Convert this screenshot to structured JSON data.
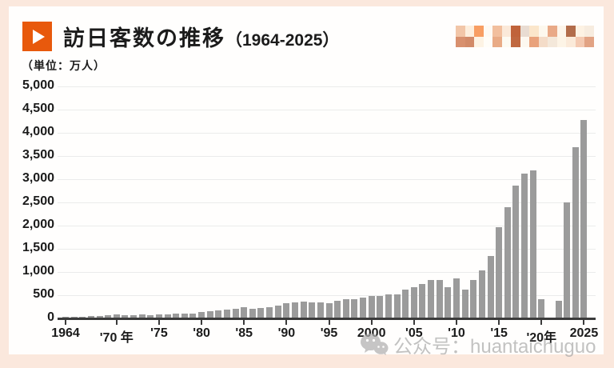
{
  "page": {
    "outer_bg": "#fbe8dd",
    "card_bg": "#fffefd"
  },
  "header": {
    "icon_color": "#e8590c",
    "title": "訪日客数の推移",
    "title_suffix": "（1964-2025）"
  },
  "unit_label": "（単位：万人）",
  "mosaic_watermark": {
    "rows": [
      [
        "#f2c6a8",
        "#fdeedd",
        "#f89e63",
        "#fefaf4",
        "#f2bf9e",
        "#fbe9d9",
        "#c0633a",
        "#e9dcd2",
        "#fbe6cb",
        "#fdf8ee",
        "#e9a987",
        "#fdf5ea",
        "#b26c4a",
        "#fdf2e3",
        "#f7ecdf"
      ],
      [
        "#d8906e",
        "#d28a68",
        "#fdf3e4",
        "#fffdf8",
        "#e9ab86",
        "#fdfaf2",
        "#c06840",
        "#fdf8f0",
        "#e9a27c",
        "#f4dcc8",
        "#f4e8da",
        "#fdf4e6",
        "#fbead9",
        "#f4cab2",
        "#e2a384"
      ]
    ]
  },
  "watermark": {
    "icon": "wechat-icon",
    "text": "公众号：huantaichuguo"
  },
  "chart_data": {
    "type": "bar",
    "title": "訪日客数の推移（1964-2025）",
    "ylabel": "万人",
    "ylim": [
      0,
      5000
    ],
    "ytick_interval": 500,
    "ytick_labels": [
      "0",
      "500",
      "1,000",
      "1,500",
      "2,000",
      "2,500",
      "3,000",
      "3,500",
      "4,000",
      "4,500",
      "5,000"
    ],
    "grid": "horizontal",
    "legend": "none",
    "bar_color": "#9b9b9b",
    "xticks": [
      {
        "year": 1964,
        "label": "1964"
      },
      {
        "year": 1970,
        "label": "'70 年"
      },
      {
        "year": 1975,
        "label": "'75"
      },
      {
        "year": 1980,
        "label": "'80"
      },
      {
        "year": 1985,
        "label": "'85"
      },
      {
        "year": 1990,
        "label": "'90"
      },
      {
        "year": 1995,
        "label": "'95"
      },
      {
        "year": 2000,
        "label": "2000"
      },
      {
        "year": 2005,
        "label": "'05"
      },
      {
        "year": 2010,
        "label": "'10"
      },
      {
        "year": 2015,
        "label": "'15"
      },
      {
        "year": 2020,
        "label": "'20年"
      },
      {
        "year": 2025,
        "label": "2025"
      }
    ],
    "x_start_year": 1964,
    "x_end_year": 2025,
    "values": [
      35,
      37,
      43,
      48,
      52,
      61,
      85,
      66,
      72,
      78,
      76,
      81,
      91,
      100,
      103,
      111,
      132,
      158,
      179,
      196,
      211,
      233,
      206,
      216,
      236,
      284,
      324,
      353,
      358,
      341,
      346,
      335,
      384,
      422,
      411,
      444,
      476,
      477,
      524,
      521,
      614,
      673,
      733,
      835,
      835,
      679,
      861,
      622,
      836,
      1036,
      1341,
      1974,
      2404,
      2869,
      3119,
      3188,
      412,
      25,
      383,
      2507,
      3687,
      4270
    ]
  }
}
